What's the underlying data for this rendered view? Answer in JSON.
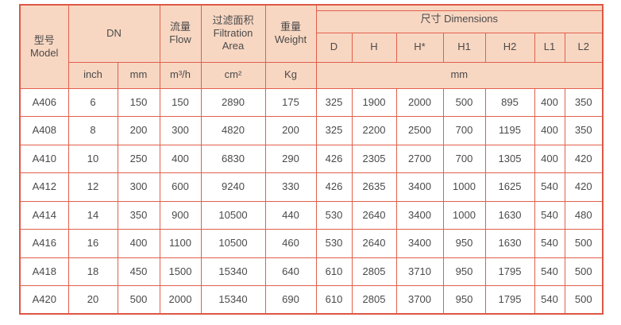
{
  "theme": {
    "border_red": "#e0604c",
    "row_line": "#f0907d",
    "header_bg": "#f8d7c2",
    "text": "#4a4a4a",
    "frame": "#dd5745"
  },
  "header": {
    "model_zh": "型号",
    "model_en": "Model",
    "dn": "DN",
    "flow_zh": "流量",
    "flow_en": "Flow",
    "filtration_zh": "过滤面积",
    "filtration_en1": "Filtration",
    "filtration_en2": "Area",
    "weight_zh": "重量",
    "weight_en": "Weight",
    "dimensions": "尺寸 Dimensions",
    "dim_cols": [
      "D",
      "H",
      "H*",
      "H1",
      "H2",
      "L1",
      "L2"
    ],
    "units": {
      "inch": "inch",
      "mm": "mm",
      "flow": "m³/h",
      "area": "cm²",
      "weight": "Kg",
      "dim_mm": "mm"
    }
  },
  "rows": [
    {
      "model": "A406",
      "dn_inch": "6",
      "dn_mm": "150",
      "flow": "150",
      "area": "2890",
      "weight": "175",
      "dims": [
        "325",
        "1900",
        "2000",
        "500",
        "895",
        "400",
        "350"
      ]
    },
    {
      "model": "A408",
      "dn_inch": "8",
      "dn_mm": "200",
      "flow": "300",
      "area": "4820",
      "weight": "200",
      "dims": [
        "325",
        "2200",
        "2500",
        "700",
        "1195",
        "400",
        "350"
      ]
    },
    {
      "model": "A410",
      "dn_inch": "10",
      "dn_mm": "250",
      "flow": "400",
      "area": "6830",
      "weight": "290",
      "dims": [
        "426",
        "2305",
        "2700",
        "700",
        "1305",
        "400",
        "420"
      ]
    },
    {
      "model": "A412",
      "dn_inch": "12",
      "dn_mm": "300",
      "flow": "600",
      "area": "9240",
      "weight": "330",
      "dims": [
        "426",
        "2635",
        "3400",
        "1000",
        "1625",
        "540",
        "420"
      ]
    },
    {
      "model": "A414",
      "dn_inch": "14",
      "dn_mm": "350",
      "flow": "900",
      "area": "10500",
      "weight": "440",
      "dims": [
        "530",
        "2640",
        "3400",
        "1000",
        "1630",
        "540",
        "480"
      ]
    },
    {
      "model": "A416",
      "dn_inch": "16",
      "dn_mm": "400",
      "flow": "1100",
      "area": "10500",
      "weight": "460",
      "dims": [
        "530",
        "2640",
        "3400",
        "950",
        "1630",
        "540",
        "500"
      ]
    },
    {
      "model": "A418",
      "dn_inch": "18",
      "dn_mm": "450",
      "flow": "1500",
      "area": "15340",
      "weight": "640",
      "dims": [
        "610",
        "2805",
        "3710",
        "950",
        "1795",
        "540",
        "500"
      ]
    },
    {
      "model": "A420",
      "dn_inch": "20",
      "dn_mm": "500",
      "flow": "2000",
      "area": "15340",
      "weight": "690",
      "dims": [
        "610",
        "2805",
        "3700",
        "950",
        "1795",
        "540",
        "500"
      ]
    }
  ]
}
